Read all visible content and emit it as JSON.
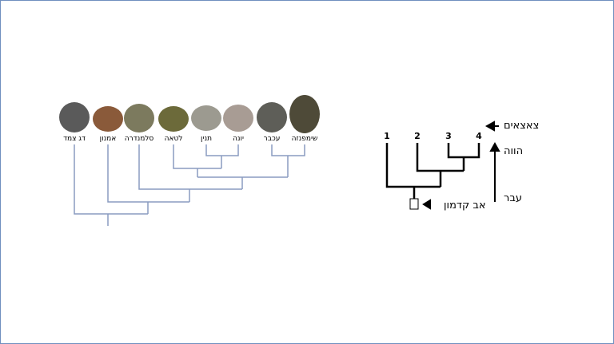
{
  "cladogram": {
    "labels": [
      "דג צמד",
      "אמנון",
      "סלמנדרה",
      "לטאה",
      "תנין",
      "יונה",
      "עכבר",
      "שימפנזה"
    ]
  },
  "model": {
    "nodes": [
      "1",
      "2",
      "3",
      "4"
    ],
    "descendants": "צאצאים",
    "present": "הווה",
    "past": "עבר",
    "ancestor": "אב קדמון"
  }
}
